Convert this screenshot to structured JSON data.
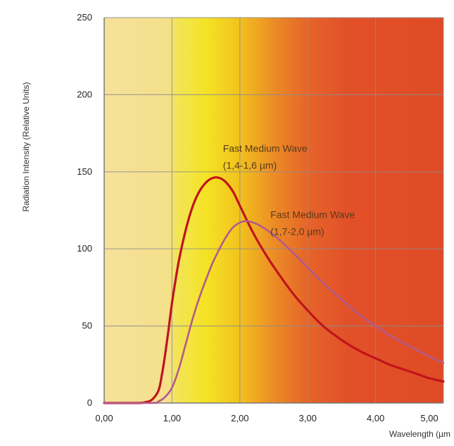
{
  "chart_data": {
    "type": "line",
    "title": "",
    "xlabel": "Wavelength (µm",
    "ylabel": "Radiation Intensity (Relative Units)",
    "xlim": [
      0,
      5
    ],
    "ylim": [
      0,
      250
    ],
    "grid": true,
    "x_ticks": [
      {
        "value": 0,
        "label": "0,00"
      },
      {
        "value": 1,
        "label": "1,00"
      },
      {
        "value": 2,
        "label": "2,00"
      },
      {
        "value": 3,
        "label": "3,00"
      },
      {
        "value": 4,
        "label": "4,00"
      },
      {
        "value": 5,
        "label": "5,00"
      }
    ],
    "y_ticks": [
      {
        "value": 0,
        "label": "0"
      },
      {
        "value": 50,
        "label": "50"
      },
      {
        "value": 100,
        "label": "100"
      },
      {
        "value": 150,
        "label": "150"
      },
      {
        "value": 200,
        "label": "200"
      },
      {
        "value": 250,
        "label": "250"
      }
    ],
    "series": [
      {
        "color": "#c0141c",
        "points": [
          [
            0,
            0
          ],
          [
            0.5,
            0
          ],
          [
            0.6,
            0.5
          ],
          [
            0.7,
            2
          ],
          [
            0.8,
            8
          ],
          [
            0.85,
            18
          ],
          [
            0.9,
            32
          ],
          [
            0.95,
            48
          ],
          [
            1.0,
            65
          ],
          [
            1.1,
            92
          ],
          [
            1.2,
            112
          ],
          [
            1.3,
            127
          ],
          [
            1.4,
            137
          ],
          [
            1.5,
            143
          ],
          [
            1.6,
            146
          ],
          [
            1.7,
            146
          ],
          [
            1.8,
            143
          ],
          [
            1.9,
            137
          ],
          [
            2.0,
            128
          ],
          [
            2.2,
            110
          ],
          [
            2.4,
            95
          ],
          [
            2.6,
            82
          ],
          [
            2.8,
            70
          ],
          [
            3.0,
            60
          ],
          [
            3.2,
            51
          ],
          [
            3.4,
            44
          ],
          [
            3.6,
            38
          ],
          [
            3.8,
            33
          ],
          [
            4.0,
            29
          ],
          [
            4.2,
            25
          ],
          [
            4.4,
            22
          ],
          [
            4.6,
            19
          ],
          [
            4.8,
            16
          ],
          [
            5.0,
            14
          ]
        ]
      },
      {
        "color": "#b25a8a",
        "points": [
          [
            0,
            0
          ],
          [
            0.7,
            0
          ],
          [
            0.8,
            1
          ],
          [
            0.9,
            4
          ],
          [
            1.0,
            10
          ],
          [
            1.1,
            22
          ],
          [
            1.2,
            38
          ],
          [
            1.3,
            54
          ],
          [
            1.4,
            68
          ],
          [
            1.5,
            80
          ],
          [
            1.6,
            91
          ],
          [
            1.7,
            100
          ],
          [
            1.8,
            108
          ],
          [
            1.9,
            114
          ],
          [
            2.0,
            117
          ],
          [
            2.1,
            118
          ],
          [
            2.2,
            117
          ],
          [
            2.3,
            115
          ],
          [
            2.5,
            109
          ],
          [
            2.7,
            101
          ],
          [
            3.0,
            88
          ],
          [
            3.2,
            79
          ],
          [
            3.5,
            67
          ],
          [
            3.8,
            56
          ],
          [
            4.0,
            50
          ],
          [
            4.2,
            44
          ],
          [
            4.5,
            37
          ],
          [
            4.8,
            30
          ],
          [
            5.0,
            26
          ]
        ]
      }
    ],
    "annotations": [
      {
        "lines": [
          "Fast Medium Wave",
          "(1,4-1,6 µm)"
        ],
        "x": 1.75,
        "y": 163
      },
      {
        "lines": [
          "Fast Medium Wave",
          "(1,7-2,0 µm)"
        ],
        "x": 2.45,
        "y": 120
      }
    ],
    "background_gradient": [
      {
        "x": 0,
        "color": "#f5e19b"
      },
      {
        "x": 0.95,
        "color": "#f5e08a"
      },
      {
        "x": 1.05,
        "color": "#f3e45a"
      },
      {
        "x": 1.5,
        "color": "#f4e324"
      },
      {
        "x": 2.0,
        "color": "#f2c21e"
      },
      {
        "x": 2.5,
        "color": "#ec8c26"
      },
      {
        "x": 3.0,
        "color": "#e66429"
      },
      {
        "x": 3.6,
        "color": "#e25029"
      },
      {
        "x": 5.0,
        "color": "#df4b25"
      }
    ]
  }
}
